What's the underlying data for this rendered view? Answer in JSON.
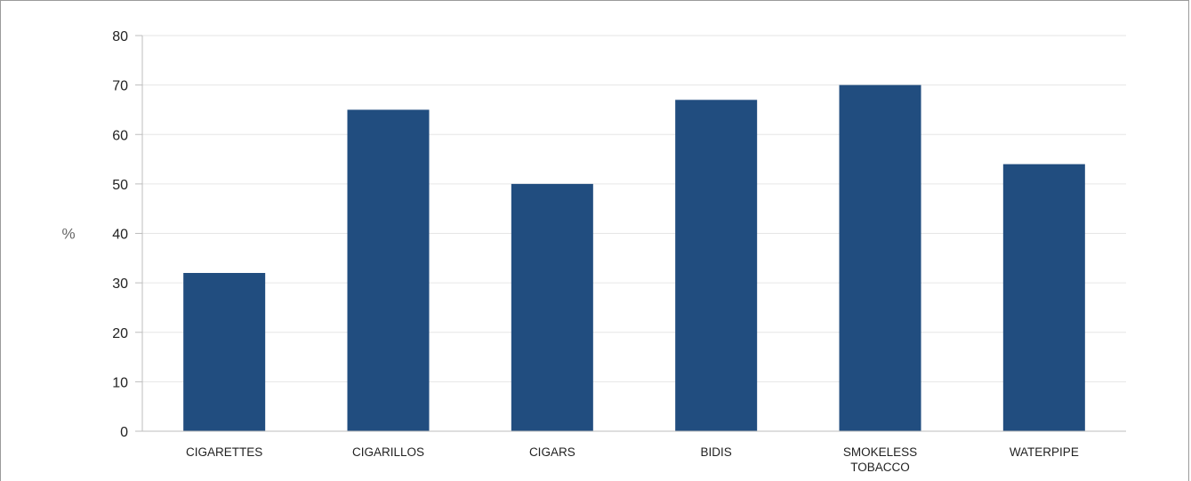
{
  "chart_data": {
    "type": "bar",
    "categories": [
      [
        "CIGARETTES"
      ],
      [
        "CIGARILLOS"
      ],
      [
        "CIGARS"
      ],
      [
        "BIDIS"
      ],
      [
        "SMOKELESS",
        "TOBACCO"
      ],
      [
        "WATERPIPE"
      ]
    ],
    "values": [
      32,
      65,
      50,
      67,
      70,
      54
    ],
    "ylabel": "%",
    "ylim": [
      0,
      80
    ],
    "yticks": [
      0,
      10,
      20,
      30,
      40,
      50,
      60,
      70,
      80
    ],
    "grid": true,
    "bar_color": "#214d7f",
    "grid_color": "#e6e6e6",
    "axis_color": "#bdbdbd"
  }
}
